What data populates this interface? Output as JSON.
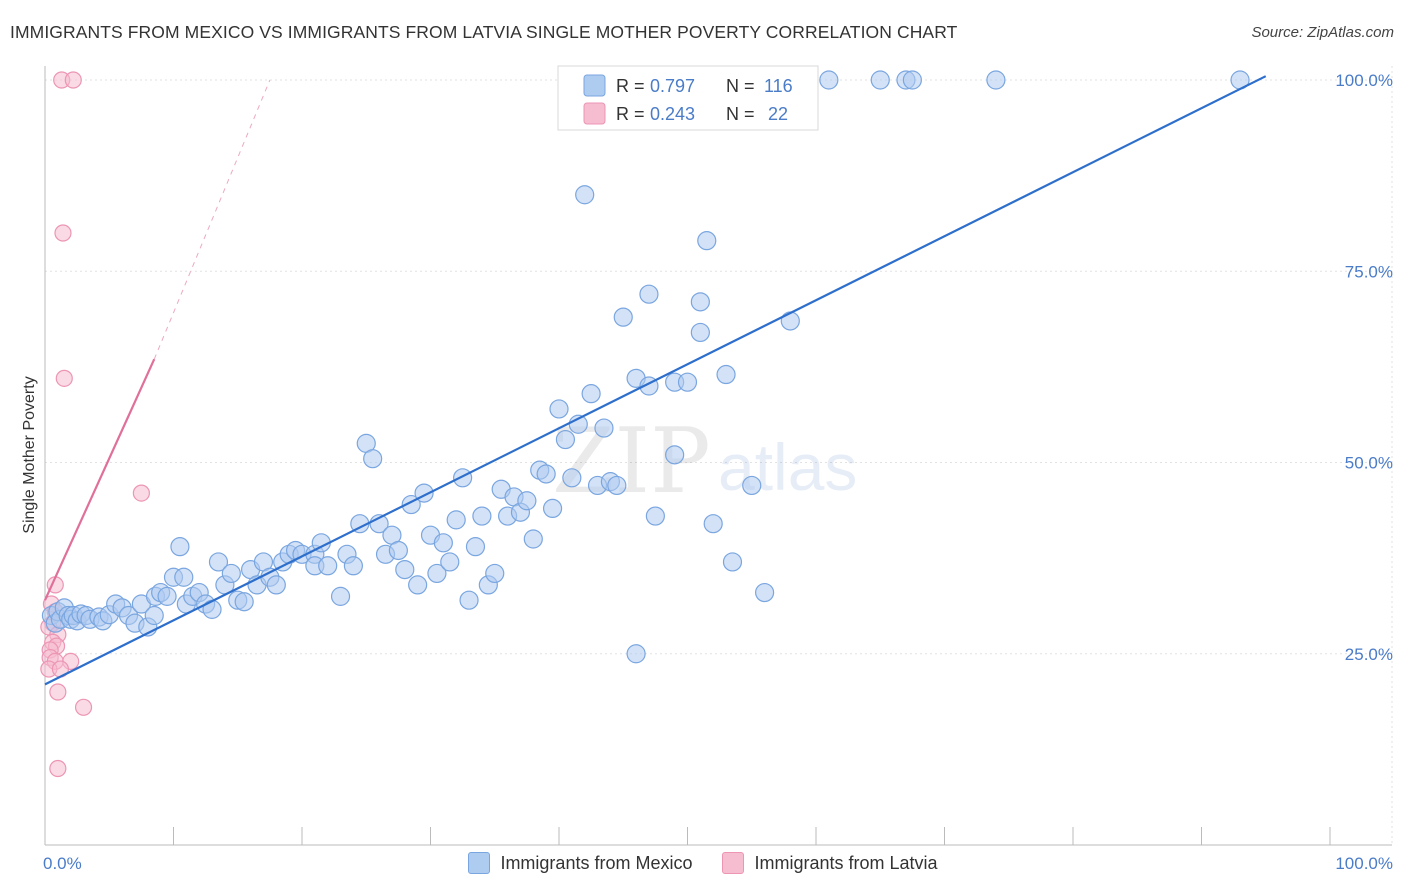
{
  "header": {
    "title": "IMMIGRANTS FROM MEXICO VS IMMIGRANTS FROM LATVIA SINGLE MOTHER POVERTY CORRELATION CHART",
    "source": "Source: ZipAtlas.com"
  },
  "watermark": {
    "zip": "ZIP",
    "atlas": "atlas"
  },
  "colors": {
    "mexico_fill": "#aecbf0",
    "mexico_stroke": "#7aa6e0",
    "mexico_line": "#2e6fcc",
    "latvia_fill": "#f6bcd0",
    "latvia_stroke": "#ec95b4",
    "latvia_line": "#e0709a",
    "tick_color": "#4a7cc8"
  },
  "legend": {
    "mexico": {
      "r_label": "R =",
      "r_value": "0.797",
      "n_label": "N =",
      "n_value": "116"
    },
    "latvia": {
      "r_label": "R =",
      "r_value": "0.243",
      "n_label": "N =",
      "n_value": "22"
    }
  },
  "bottom_legend": {
    "mexico": "Immigrants from Mexico",
    "latvia": "Immigrants from Latvia"
  },
  "chart_data": {
    "type": "scatter",
    "title": "IMMIGRANTS FROM MEXICO VS IMMIGRANTS FROM LATVIA SINGLE MOTHER POVERTY CORRELATION CHART",
    "xlabel": "",
    "ylabel": "Single Mother Poverty",
    "xlim": [
      0,
      100
    ],
    "ylim": [
      0,
      105
    ],
    "x_tick_labels": [
      {
        "value": 0,
        "label": "0.0%"
      },
      {
        "value": 100,
        "label": "100.0%"
      }
    ],
    "y_tick_labels": [
      {
        "value": 25,
        "label": "25.0%"
      },
      {
        "value": 50,
        "label": "50.0%"
      },
      {
        "value": 75,
        "label": "75.0%"
      },
      {
        "value": 100,
        "label": "100.0%"
      }
    ],
    "grid": true,
    "series": [
      {
        "name": "Immigrants from Mexico",
        "r": 0.797,
        "n": 116,
        "trendline": {
          "x": [
            0,
            95
          ],
          "y": [
            21,
            100.5
          ],
          "style": "solid"
        },
        "points": [
          [
            0.5,
            30
          ],
          [
            0.8,
            29
          ],
          [
            1,
            30.5
          ],
          [
            1.2,
            29.5
          ],
          [
            1.5,
            31
          ],
          [
            1.8,
            30
          ],
          [
            2,
            29.5
          ],
          [
            2.2,
            30
          ],
          [
            2.5,
            29.3
          ],
          [
            2.8,
            30.2
          ],
          [
            3.2,
            30
          ],
          [
            3.5,
            29.5
          ],
          [
            4.2,
            29.8
          ],
          [
            4.5,
            29.3
          ],
          [
            5,
            30.1
          ],
          [
            5.5,
            31.5
          ],
          [
            6,
            31
          ],
          [
            6.5,
            30
          ],
          [
            7,
            29
          ],
          [
            7.5,
            31.5
          ],
          [
            8,
            28.5
          ],
          [
            8.5,
            30
          ],
          [
            8.6,
            32.5
          ],
          [
            9,
            33
          ],
          [
            9.5,
            32.5
          ],
          [
            10,
            35
          ],
          [
            10.5,
            39
          ],
          [
            10.8,
            35
          ],
          [
            11,
            31.5
          ],
          [
            11.5,
            32.5
          ],
          [
            12,
            33
          ],
          [
            12.5,
            31.5
          ],
          [
            13,
            30.8
          ],
          [
            13.5,
            37
          ],
          [
            14,
            34
          ],
          [
            14.5,
            35.5
          ],
          [
            15,
            32
          ],
          [
            15.5,
            31.8
          ],
          [
            16,
            36
          ],
          [
            16.5,
            34
          ],
          [
            17,
            37
          ],
          [
            17.5,
            35
          ],
          [
            18,
            34
          ],
          [
            18.5,
            37
          ],
          [
            19,
            38
          ],
          [
            19.5,
            38.5
          ],
          [
            20,
            38
          ],
          [
            21,
            38
          ],
          [
            21,
            36.5
          ],
          [
            21.5,
            39.5
          ],
          [
            22,
            36.5
          ],
          [
            23,
            32.5
          ],
          [
            23.5,
            38
          ],
          [
            24,
            36.5
          ],
          [
            24.5,
            42
          ],
          [
            25,
            52.5
          ],
          [
            25.5,
            50.5
          ],
          [
            26,
            42
          ],
          [
            26.5,
            38
          ],
          [
            27,
            40.5
          ],
          [
            27.5,
            38.5
          ],
          [
            28,
            36
          ],
          [
            28.5,
            44.5
          ],
          [
            29,
            34
          ],
          [
            29.5,
            46
          ],
          [
            30,
            40.5
          ],
          [
            30.5,
            35.5
          ],
          [
            31,
            39.5
          ],
          [
            31.5,
            37
          ],
          [
            32,
            42.5
          ],
          [
            32.5,
            48
          ],
          [
            33,
            32
          ],
          [
            33.5,
            39
          ],
          [
            34,
            43
          ],
          [
            34.5,
            34
          ],
          [
            35,
            35.5
          ],
          [
            35.5,
            46.5
          ],
          [
            36,
            43
          ],
          [
            36.5,
            45.5
          ],
          [
            37,
            43.5
          ],
          [
            37.5,
            45
          ],
          [
            38,
            40
          ],
          [
            38.5,
            49
          ],
          [
            39,
            48.5
          ],
          [
            39.5,
            44
          ],
          [
            40,
            57
          ],
          [
            40.5,
            53
          ],
          [
            41,
            48
          ],
          [
            41.5,
            55
          ],
          [
            42,
            85
          ],
          [
            42.5,
            59
          ],
          [
            43,
            47
          ],
          [
            43.5,
            54.5
          ],
          [
            44,
            47.5
          ],
          [
            44.5,
            47
          ],
          [
            45,
            69
          ],
          [
            46,
            61
          ],
          [
            46,
            25
          ],
          [
            47,
            60
          ],
          [
            47,
            72
          ],
          [
            47.5,
            43
          ],
          [
            49,
            60.5
          ],
          [
            49,
            51
          ],
          [
            50,
            60.5
          ],
          [
            51,
            67
          ],
          [
            51,
            71
          ],
          [
            51.5,
            79
          ],
          [
            52,
            42
          ],
          [
            53,
            61.5
          ],
          [
            53.5,
            37
          ],
          [
            55,
            47
          ],
          [
            56,
            33
          ],
          [
            58,
            68.5
          ],
          [
            59,
            100
          ],
          [
            61,
            100
          ],
          [
            65,
            100
          ],
          [
            67,
            100
          ],
          [
            67.5,
            100
          ],
          [
            74,
            100
          ],
          [
            93,
            100
          ]
        ]
      },
      {
        "name": "Immigrants from Latvia",
        "r": 0.243,
        "n": 22,
        "trendline": {
          "x": [
            0,
            8.5
          ],
          "y": [
            32,
            63.5
          ],
          "style": "solid",
          "extension_to": [
            17.5,
            100
          ],
          "extension_style": "dashed"
        },
        "points": [
          [
            1.3,
            100
          ],
          [
            2.2,
            100
          ],
          [
            1.4,
            80
          ],
          [
            1.5,
            61
          ],
          [
            7.5,
            46
          ],
          [
            0.8,
            34
          ],
          [
            0.5,
            31.5
          ],
          [
            0.8,
            30.5
          ],
          [
            0.6,
            29
          ],
          [
            0.3,
            28.5
          ],
          [
            1,
            27.5
          ],
          [
            0.6,
            26.5
          ],
          [
            0.9,
            26
          ],
          [
            0.4,
            25.5
          ],
          [
            0.4,
            24.5
          ],
          [
            0.8,
            24
          ],
          [
            2,
            24
          ],
          [
            0.3,
            23
          ],
          [
            1.2,
            23
          ],
          [
            1,
            20
          ],
          [
            3,
            18
          ],
          [
            1,
            10
          ]
        ]
      }
    ]
  }
}
